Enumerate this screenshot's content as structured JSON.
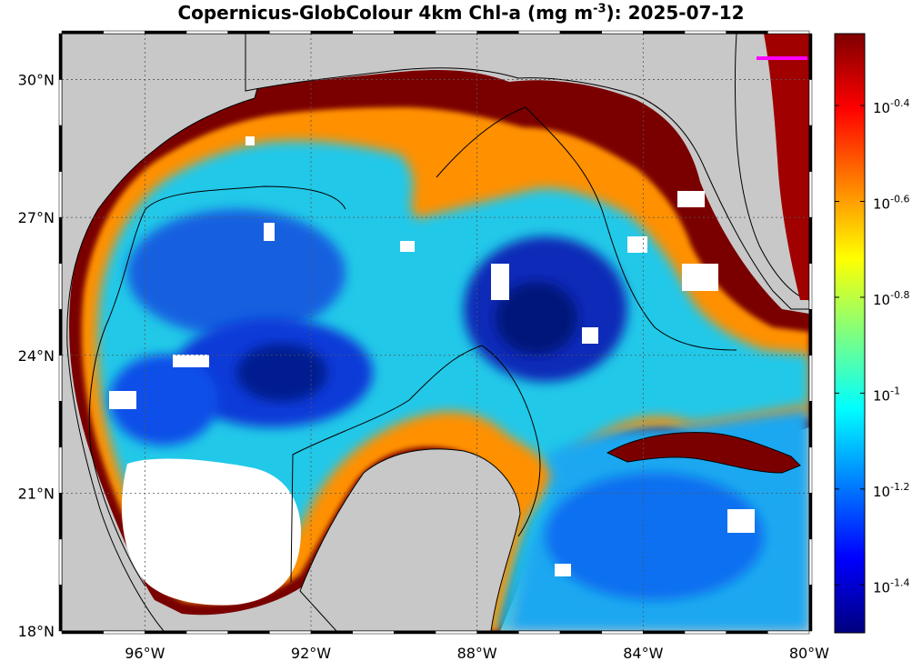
{
  "title": {
    "prefix": "Copernicus-GlobColour 4km Chl-a (mg m",
    "exponent": "-3",
    "suffix": "): 2025-07-12"
  },
  "map": {
    "lon_range": [
      -98.0,
      -80.0
    ],
    "lat_range": [
      18.0,
      31.0
    ],
    "gridlines": true,
    "land_color": "#c8c8c8",
    "no_data_color": "#ffffff",
    "coast_color": "#000000",
    "x_ticks": [
      {
        "lon": -96,
        "label": "96°W"
      },
      {
        "lon": -92,
        "label": "92°W"
      },
      {
        "lon": -88,
        "label": "88°W"
      },
      {
        "lon": -84,
        "label": "84°W"
      },
      {
        "lon": -80,
        "label": "80°W"
      }
    ],
    "y_ticks": [
      {
        "lat": 30,
        "label": "30°N"
      },
      {
        "lat": 27,
        "label": "27°N"
      },
      {
        "lat": 24,
        "label": "24°N"
      },
      {
        "lat": 21,
        "label": "21°N"
      },
      {
        "lat": 18,
        "label": "18°N"
      }
    ]
  },
  "colorbar": {
    "scale": "log10",
    "colormap": "jet",
    "range_log10": [
      -1.5,
      -0.25
    ],
    "ticks": [
      {
        "value": -0.4,
        "base": "10",
        "exp": "-0.4"
      },
      {
        "value": -0.6,
        "base": "10",
        "exp": "-0.6"
      },
      {
        "value": -0.8,
        "base": "10",
        "exp": "-0.8"
      },
      {
        "value": -1.0,
        "base": "10",
        "exp": "-1"
      },
      {
        "value": -1.2,
        "base": "10",
        "exp": "-1.2"
      },
      {
        "value": -1.4,
        "base": "10",
        "exp": "-1.4"
      }
    ]
  }
}
